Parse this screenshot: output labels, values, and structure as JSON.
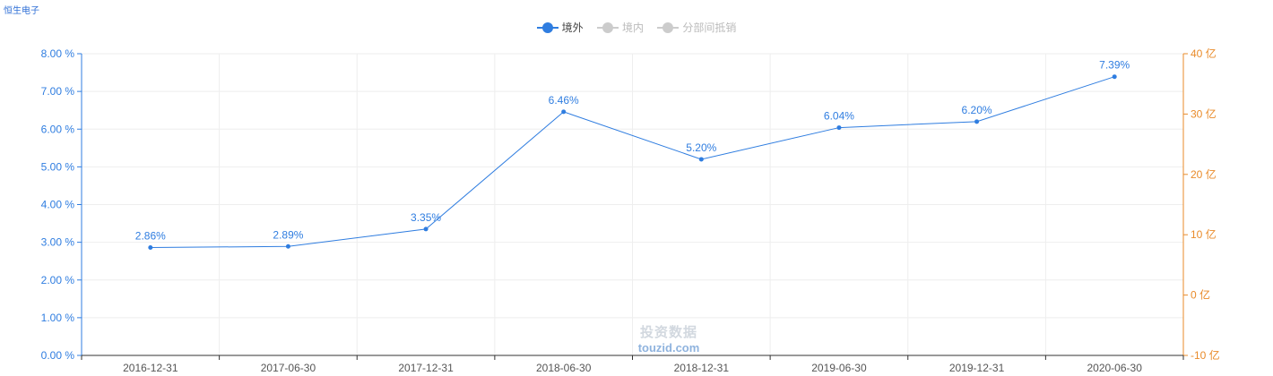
{
  "header": {
    "company": "恒生电子"
  },
  "legend": [
    {
      "label": "境外",
      "active": true
    },
    {
      "label": "境内",
      "active": false
    },
    {
      "label": "分部间抵销",
      "active": false
    }
  ],
  "watermark": {
    "cn": "投资数据",
    "en": "touzid.com"
  },
  "colors": {
    "series": "#2f7de0",
    "left_axis": "#2f7de0",
    "right_axis": "#e98b2a",
    "grid": "#eeeeee"
  },
  "chart_data": {
    "type": "line",
    "categories": [
      "2016-12-31",
      "2017-06-30",
      "2017-12-31",
      "2018-06-30",
      "2018-12-31",
      "2019-06-30",
      "2019-12-31",
      "2020-06-30"
    ],
    "series": [
      {
        "name": "境外",
        "values": [
          2.86,
          2.89,
          3.35,
          6.46,
          5.2,
          6.04,
          6.2,
          7.39
        ],
        "labels": [
          "2.86%",
          "2.89%",
          "3.35%",
          "6.46%",
          "5.20%",
          "6.04%",
          "6.20%",
          "7.39%"
        ]
      }
    ],
    "y_left": {
      "ticks": [
        "0.00 %",
        "1.00 %",
        "2.00 %",
        "3.00 %",
        "4.00 %",
        "5.00 %",
        "6.00 %",
        "7.00 %",
        "8.00 %"
      ],
      "range": [
        0,
        8
      ]
    },
    "y_right": {
      "ticks": [
        "-10 亿",
        "0 亿",
        "10 亿",
        "20 亿",
        "30 亿",
        "40 亿"
      ],
      "range": [
        -10,
        40
      ]
    },
    "grid": true,
    "legend_position": "top-center"
  }
}
